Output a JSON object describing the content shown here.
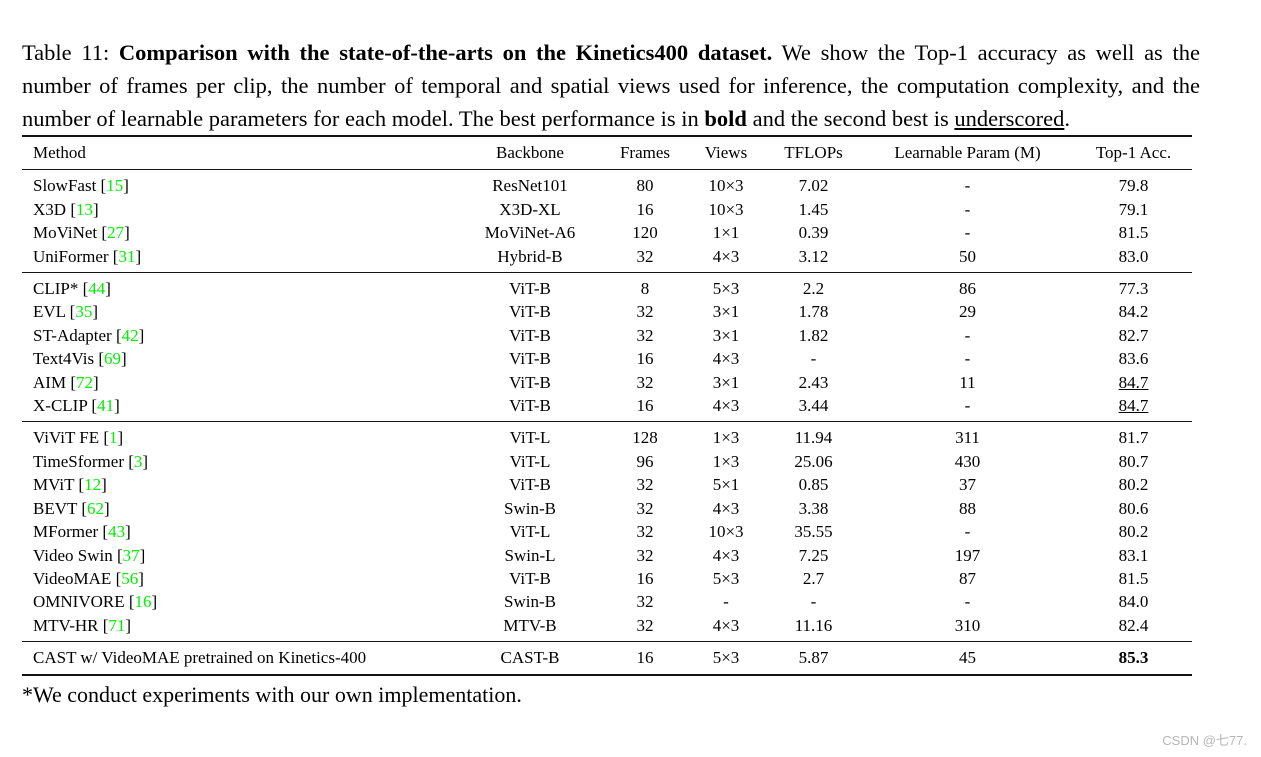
{
  "caption": {
    "prefix": "Table 11: ",
    "bold_title": "Comparison with the state-of-the-arts on the Kinetics400 dataset.",
    "body_1": " We show the Top-1 accuracy as well as the number of frames per clip, the number of temporal and spatial views used for inference, the computation complexity, and the number of learnable parameters for each model. The best performance is in ",
    "bold_word": "bold",
    "body_2": " and the second best is ",
    "underlined_word": "underscored",
    "body_3": "."
  },
  "table": {
    "headers": [
      "Method",
      "Backbone",
      "Frames",
      "Views",
      "TFLOPs",
      "Learnable Param (M)",
      "Top-1 Acc."
    ],
    "groups": [
      {
        "rows": [
          {
            "method": "SlowFast",
            "cite": "15",
            "backbone": "ResNet101",
            "frames": "80",
            "views": "10×3",
            "tflops": "7.02",
            "params": "-",
            "acc": "79.8",
            "acc_style": "normal"
          },
          {
            "method": "X3D",
            "cite": "13",
            "backbone": "X3D-XL",
            "frames": "16",
            "views": "10×3",
            "tflops": "1.45",
            "params": "-",
            "acc": "79.1",
            "acc_style": "normal"
          },
          {
            "method": "MoViNet",
            "cite": "27",
            "backbone": "MoViNet-A6",
            "frames": "120",
            "views": "1×1",
            "tflops": "0.39",
            "params": "-",
            "acc": "81.5",
            "acc_style": "normal"
          },
          {
            "method": "UniFormer",
            "cite": "31",
            "backbone": "Hybrid-B",
            "frames": "32",
            "views": "4×3",
            "tflops": "3.12",
            "params": "50",
            "acc": "83.0",
            "acc_style": "normal"
          }
        ]
      },
      {
        "rows": [
          {
            "method": "CLIP*",
            "cite": "44",
            "backbone": "ViT-B",
            "frames": "8",
            "views": "5×3",
            "tflops": "2.2",
            "params": "86",
            "acc": "77.3",
            "acc_style": "normal"
          },
          {
            "method": "EVL",
            "cite": "35",
            "backbone": "ViT-B",
            "frames": "32",
            "views": "3×1",
            "tflops": "1.78",
            "params": "29",
            "acc": "84.2",
            "acc_style": "normal"
          },
          {
            "method": "ST-Adapter",
            "cite": "42",
            "backbone": "ViT-B",
            "frames": "32",
            "views": "3×1",
            "tflops": "1.82",
            "params": "-",
            "acc": "82.7",
            "acc_style": "normal"
          },
          {
            "method": "Text4Vis",
            "cite": "69",
            "backbone": "ViT-B",
            "frames": "16",
            "views": "4×3",
            "tflops": "-",
            "params": "-",
            "acc": "83.6",
            "acc_style": "normal"
          },
          {
            "method": "AIM",
            "cite": "72",
            "backbone": "ViT-B",
            "frames": "32",
            "views": "3×1",
            "tflops": "2.43",
            "params": "11",
            "acc": "84.7",
            "acc_style": "underline"
          },
          {
            "method": "X-CLIP",
            "cite": "41",
            "backbone": "ViT-B",
            "frames": "16",
            "views": "4×3",
            "tflops": "3.44",
            "params": "-",
            "acc": "84.7",
            "acc_style": "underline"
          }
        ]
      },
      {
        "rows": [
          {
            "method": "ViViT FE",
            "cite": "1",
            "backbone": "ViT-L",
            "frames": "128",
            "views": "1×3",
            "tflops": "11.94",
            "params": "311",
            "acc": "81.7",
            "acc_style": "normal"
          },
          {
            "method": "TimeSformer",
            "cite": "3",
            "backbone": "ViT-L",
            "frames": "96",
            "views": "1×3",
            "tflops": "25.06",
            "params": "430",
            "acc": "80.7",
            "acc_style": "normal"
          },
          {
            "method": "MViT",
            "cite": "12",
            "backbone": "ViT-B",
            "frames": "32",
            "views": "5×1",
            "tflops": "0.85",
            "params": "37",
            "acc": "80.2",
            "acc_style": "normal"
          },
          {
            "method": "BEVT",
            "cite": "62",
            "backbone": "Swin-B",
            "frames": "32",
            "views": "4×3",
            "tflops": "3.38",
            "params": "88",
            "acc": "80.6",
            "acc_style": "normal"
          },
          {
            "method": "MFormer",
            "cite": "43",
            "backbone": "ViT-L",
            "frames": "32",
            "views": "10×3",
            "tflops": "35.55",
            "params": "-",
            "acc": "80.2",
            "acc_style": "normal"
          },
          {
            "method": "Video Swin",
            "cite": "37",
            "backbone": "Swin-L",
            "frames": "32",
            "views": "4×3",
            "tflops": "7.25",
            "params": "197",
            "acc": "83.1",
            "acc_style": "normal"
          },
          {
            "method": "VideoMAE",
            "cite": "56",
            "backbone": "ViT-B",
            "frames": "16",
            "views": "5×3",
            "tflops": "2.7",
            "params": "87",
            "acc": "81.5",
            "acc_style": "normal"
          },
          {
            "method": "OMNIVORE",
            "cite": "16",
            "backbone": "Swin-B",
            "frames": "32",
            "views": "-",
            "tflops": "-",
            "params": "-",
            "acc": "84.0",
            "acc_style": "normal"
          },
          {
            "method": "MTV-HR",
            "cite": "71",
            "backbone": "MTV-B",
            "frames": "32",
            "views": "4×3",
            "tflops": "11.16",
            "params": "310",
            "acc": "82.4",
            "acc_style": "normal"
          }
        ]
      },
      {
        "rows": [
          {
            "method": "CAST w/ VideoMAE pretrained on Kinetics-400",
            "cite": null,
            "backbone": "CAST-B",
            "frames": "16",
            "views": "5×3",
            "tflops": "5.87",
            "params": "45",
            "acc": "85.3",
            "acc_style": "bold"
          }
        ]
      }
    ]
  },
  "footnote": "*We conduct experiments with our own implementation.",
  "watermark": "CSDN @七77.",
  "colors": {
    "citation_green": "#00ee00",
    "rule_black": "#141414",
    "watermark_gray": "#b6b6b6"
  }
}
